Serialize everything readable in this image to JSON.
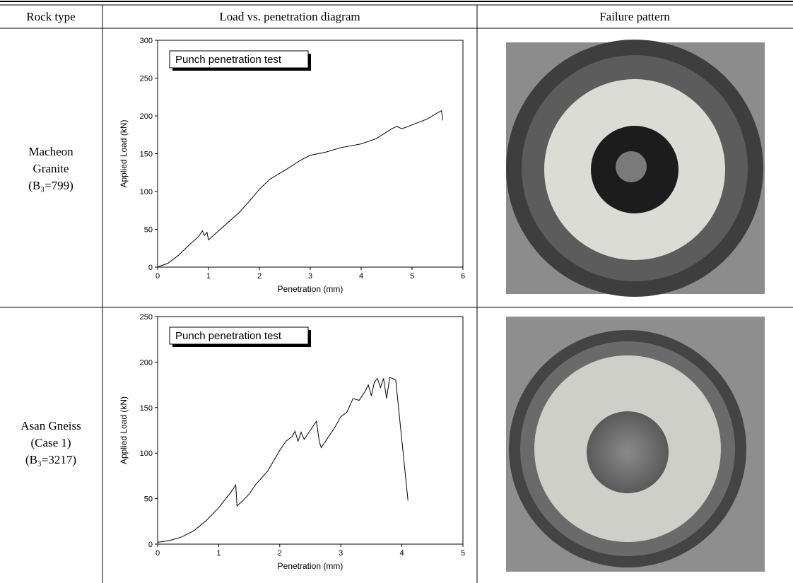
{
  "table": {
    "header": [
      "Rock type",
      "Load vs. penetration diagram",
      "Failure pattern"
    ],
    "rows": [
      {
        "rock_type": [
          "Macheon",
          "Granite",
          "(B₃=799)"
        ]
      },
      {
        "rock_type": [
          "Asan Gneiss",
          "(Case 1)",
          "(B₃=3217)"
        ]
      }
    ]
  },
  "chart_data": [
    {
      "type": "line",
      "annotation": "Punch penetration test",
      "x_label": "Penetration (mm)",
      "y_label": "Applied Load (kN)",
      "color": "#000000",
      "xlim": [
        0,
        6
      ],
      "ylim": [
        0,
        300
      ],
      "xticks": [
        0,
        1,
        2,
        3,
        4,
        5,
        6
      ],
      "yticks": [
        0,
        50,
        100,
        150,
        200,
        250,
        300
      ],
      "x": [
        0,
        0.2,
        0.4,
        0.6,
        0.8,
        0.88,
        0.92,
        0.97,
        1.0,
        1.2,
        1.4,
        1.6,
        1.8,
        2.0,
        2.2,
        2.5,
        2.8,
        3.0,
        3.3,
        3.6,
        4.0,
        4.3,
        4.6,
        4.7,
        4.8,
        5.0,
        5.3,
        5.5,
        5.58,
        5.6
      ],
      "values": [
        0,
        5,
        15,
        28,
        40,
        48,
        42,
        46,
        36,
        48,
        60,
        72,
        87,
        103,
        116,
        128,
        141,
        148,
        152,
        158,
        163,
        170,
        183,
        186,
        183,
        188,
        196,
        204,
        207,
        194
      ]
    },
    {
      "type": "line",
      "annotation": "Punch penetration test",
      "x_label": "Penetration (mm)",
      "y_label": "Applied Load (kN)",
      "color": "#000000",
      "xlim": [
        0,
        5
      ],
      "ylim": [
        0,
        250
      ],
      "xticks": [
        0,
        1,
        2,
        3,
        4,
        5
      ],
      "yticks": [
        0,
        50,
        100,
        150,
        200,
        250
      ],
      "x": [
        0,
        0.2,
        0.4,
        0.6,
        0.8,
        1.0,
        1.2,
        1.28,
        1.3,
        1.4,
        1.5,
        1.6,
        1.8,
        2.0,
        2.1,
        2.2,
        2.25,
        2.3,
        2.35,
        2.4,
        2.5,
        2.6,
        2.65,
        2.68,
        2.75,
        2.9,
        3.0,
        3.1,
        3.2,
        3.3,
        3.4,
        3.45,
        3.5,
        3.55,
        3.6,
        3.65,
        3.7,
        3.75,
        3.8,
        3.85,
        3.9,
        4.1
      ],
      "values": [
        2,
        4,
        8,
        15,
        26,
        40,
        57,
        65,
        42,
        48,
        55,
        65,
        80,
        103,
        113,
        118,
        124,
        113,
        123,
        115,
        125,
        135,
        112,
        106,
        113,
        128,
        140,
        145,
        160,
        158,
        168,
        175,
        163,
        178,
        182,
        172,
        182,
        160,
        183,
        182,
        180,
        48
      ]
    }
  ]
}
